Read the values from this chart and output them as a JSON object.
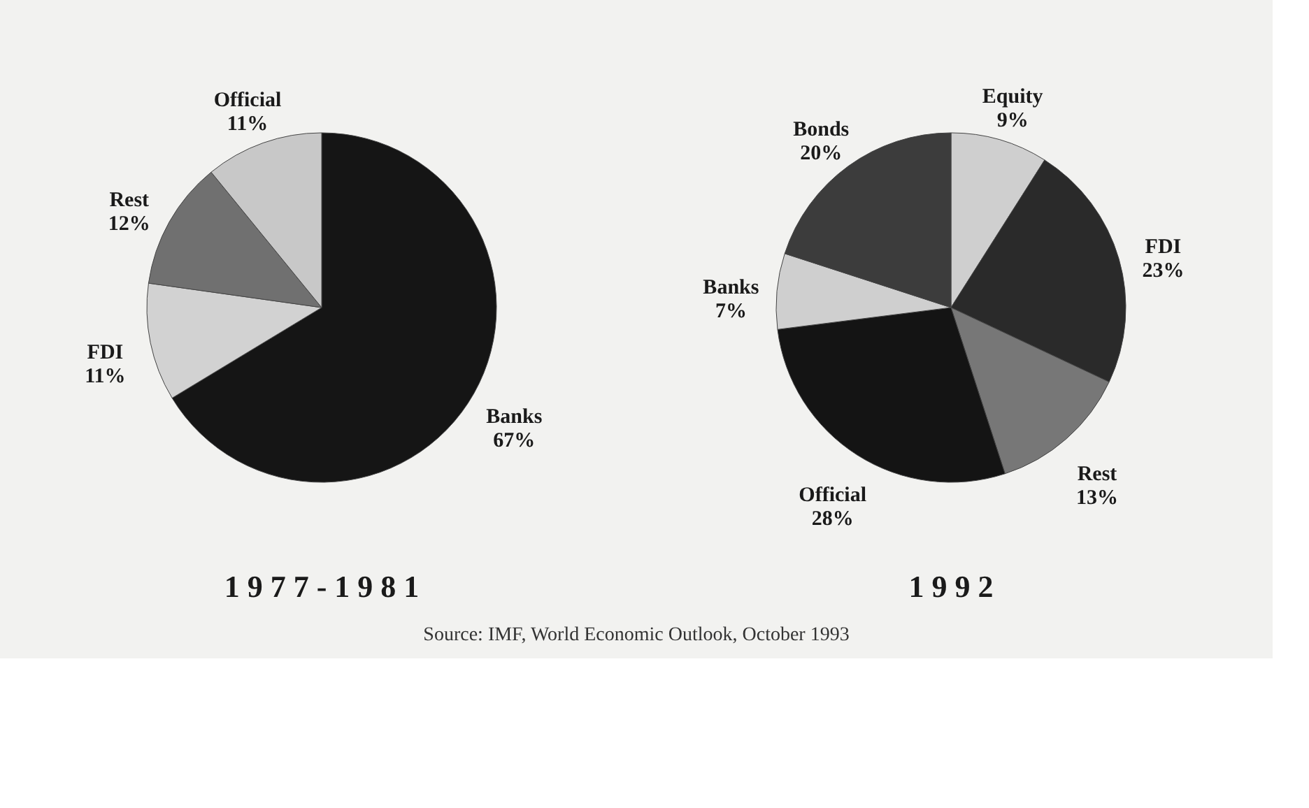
{
  "chart_data": [
    {
      "type": "pie",
      "title": "1 9 7 7 - 1 9 8 1",
      "categories": [
        "Banks",
        "FDI",
        "Rest",
        "Official"
      ],
      "values": [
        67,
        11,
        12,
        11
      ],
      "value_labels": [
        "67%",
        "11%",
        "12%",
        "11%"
      ],
      "colors": [
        "#151515",
        "#d2d2d2",
        "#707070",
        "#c8c8c8"
      ],
      "annotations": [
        "Source: IMF, World Economic Outlook, October 1993"
      ]
    },
    {
      "type": "pie",
      "title": "1 9 9 2",
      "categories": [
        "Equity",
        "FDI",
        "Rest",
        "Official",
        "Banks",
        "Bonds"
      ],
      "values": [
        9,
        23,
        13,
        28,
        7,
        20
      ],
      "value_labels": [
        "9%",
        "23%",
        "13%",
        "28%",
        "7%",
        "20%"
      ],
      "colors": [
        "#cfcfcf",
        "#2a2a2a",
        "#777777",
        "#141414",
        "#cfcfcf",
        "#3c3c3c"
      ]
    }
  ]
}
